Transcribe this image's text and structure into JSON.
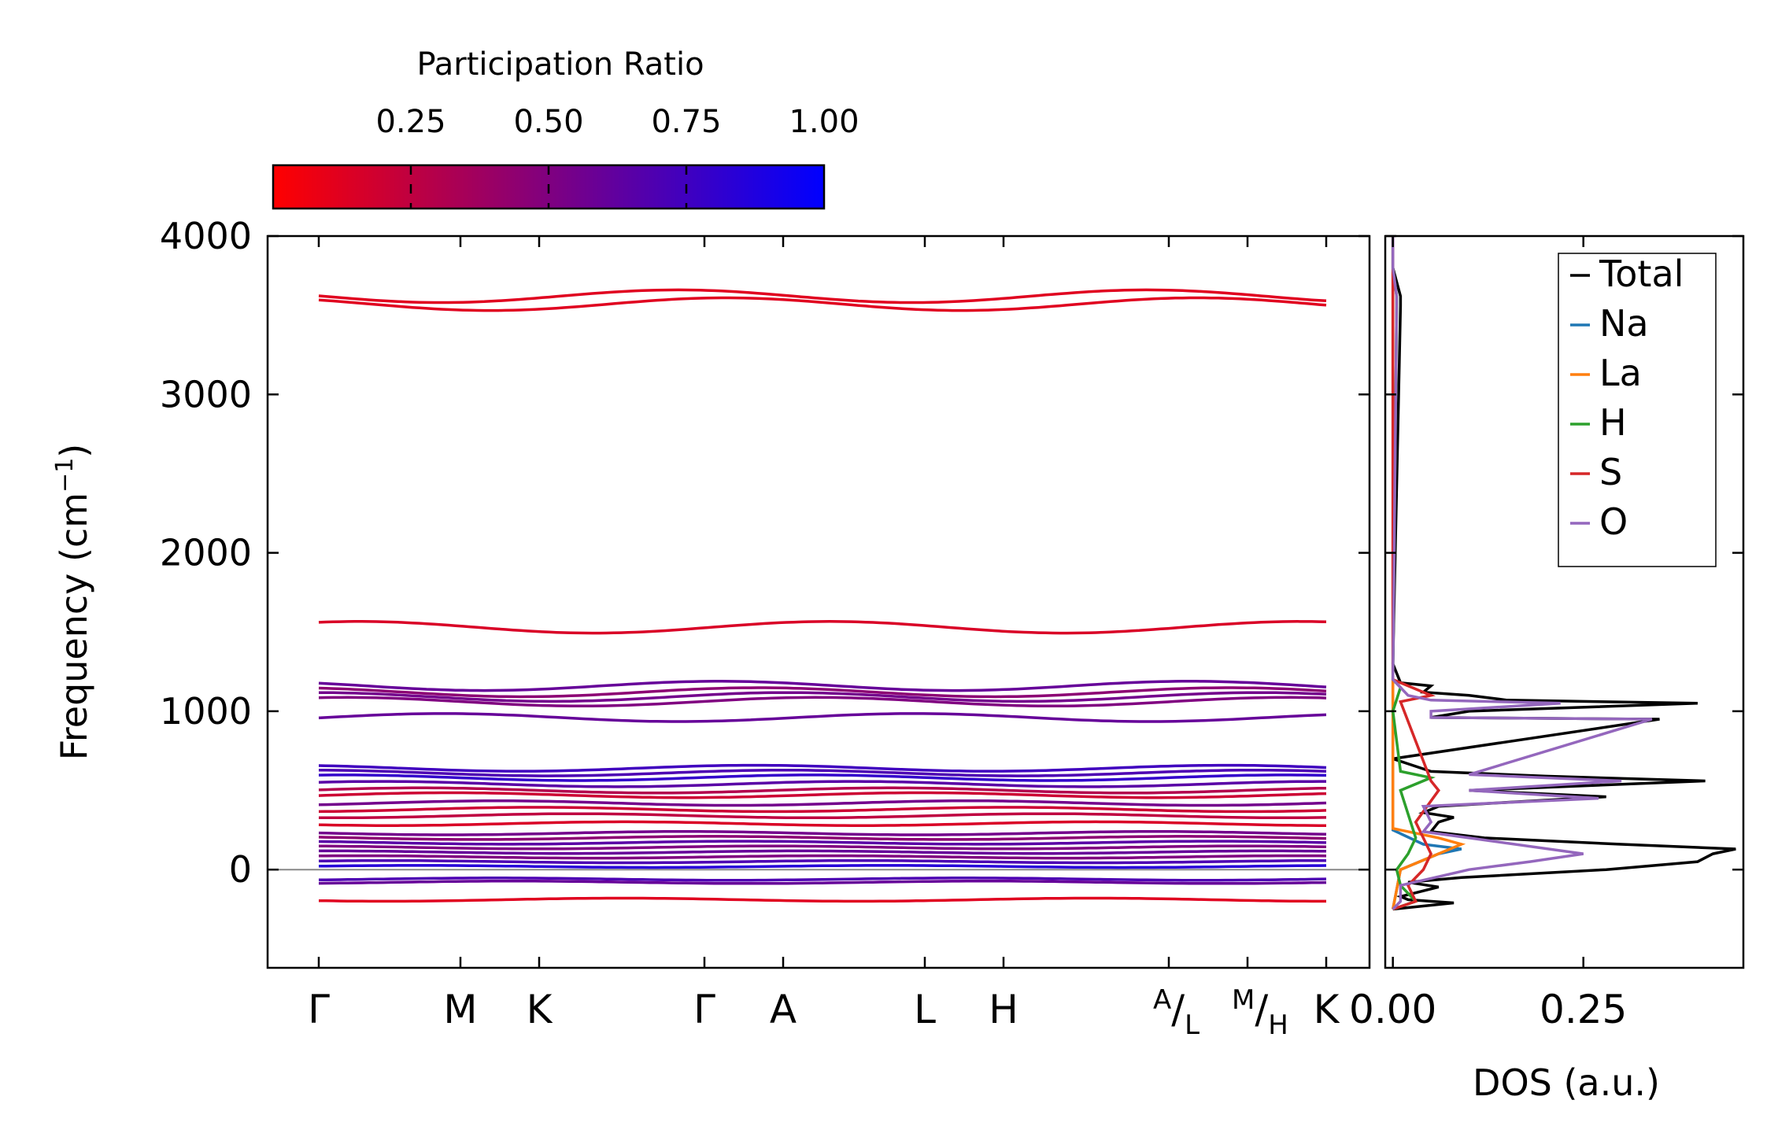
{
  "chart_data": [
    {
      "type": "line",
      "name": "phonon-band-structure",
      "ylabel": "Frequency (cm",
      "ylabel_sup": "−1",
      "ylabel_end": ")",
      "ylim": [
        -620,
        4000
      ],
      "yticks": [
        0,
        1000,
        2000,
        3000,
        4000
      ],
      "ytick_labels": [
        "0",
        "1000",
        "2000",
        "3000",
        "4000"
      ],
      "path_positions": [
        0,
        0.9,
        1.4,
        2.45,
        2.95,
        3.85,
        4.35,
        5.4,
        5.9,
        6.4
      ],
      "path_labels": [
        {
          "text": "Γ",
          "at": 0
        },
        {
          "text": "M",
          "at": 0.9
        },
        {
          "text": "K",
          "at": 1.4
        },
        {
          "text": "Γ",
          "at": 2.45
        },
        {
          "text": "A",
          "at": 2.95
        },
        {
          "text": "L",
          "at": 3.85
        },
        {
          "text": "H",
          "at": 4.35
        },
        {
          "text": "K",
          "at": 6.4
        }
      ],
      "split_labels": [
        {
          "top": "A",
          "bottom": "L",
          "at": 5.4
        },
        {
          "top": "M",
          "bottom": "H",
          "at": 5.9
        }
      ],
      "reference_line": 0,
      "bands": [
        {
          "freq": 3620,
          "pr": 0.12
        },
        {
          "freq": 3570,
          "pr": 0.12
        },
        {
          "freq": 1530,
          "pr": 0.15
        },
        {
          "freq": 1160,
          "pr": 0.6
        },
        {
          "freq": 1120,
          "pr": 0.45
        },
        {
          "freq": 1090,
          "pr": 0.55
        },
        {
          "freq": 1060,
          "pr": 0.5
        },
        {
          "freq": 960,
          "pr": 0.6
        },
        {
          "freq": 640,
          "pr": 0.75
        },
        {
          "freq": 610,
          "pr": 0.7
        },
        {
          "freq": 580,
          "pr": 0.8
        },
        {
          "freq": 540,
          "pr": 0.65
        },
        {
          "freq": 500,
          "pr": 0.3
        },
        {
          "freq": 470,
          "pr": 0.2
        },
        {
          "freq": 420,
          "pr": 0.55
        },
        {
          "freq": 380,
          "pr": 0.2
        },
        {
          "freq": 340,
          "pr": 0.25
        },
        {
          "freq": 290,
          "pr": 0.15
        },
        {
          "freq": 230,
          "pr": 0.55
        },
        {
          "freq": 200,
          "pr": 0.45
        },
        {
          "freq": 170,
          "pr": 0.65
        },
        {
          "freq": 140,
          "pr": 0.5
        },
        {
          "freq": 110,
          "pr": 0.6
        },
        {
          "freq": 80,
          "pr": 0.5
        },
        {
          "freq": 50,
          "pr": 0.7
        },
        {
          "freq": 20,
          "pr": 0.85
        },
        {
          "freq": -60,
          "pr": 0.7
        },
        {
          "freq": -80,
          "pr": 0.6
        },
        {
          "freq": -190,
          "pr": 0.12
        }
      ]
    },
    {
      "type": "line",
      "name": "density-of-states",
      "xlabel": "DOS (a.u.)",
      "xlim": [
        -0.01,
        0.46
      ],
      "xticks": [
        0.0,
        0.25
      ],
      "xtick_labels": [
        "0.00",
        "0.25"
      ],
      "ylim": [
        -620,
        4000
      ],
      "series": [
        {
          "name": "Total",
          "color": "#000000",
          "freq": [
            -250,
            -210,
            -190,
            -170,
            -110,
            -80,
            -50,
            0,
            50,
            100,
            130,
            160,
            200,
            240,
            300,
            330,
            360,
            400,
            460,
            500,
            560,
            590,
            620,
            700,
            950,
            960,
            1000,
            1050,
            1070,
            1100,
            1120,
            1160,
            1180,
            1300,
            3560,
            3620,
            3800
          ],
          "dos": [
            0,
            0.08,
            0.02,
            0.01,
            0.06,
            0.02,
            0.09,
            0.28,
            0.4,
            0.42,
            0.45,
            0.3,
            0.12,
            0.05,
            0.06,
            0.08,
            0.04,
            0.06,
            0.28,
            0.1,
            0.41,
            0.2,
            0.05,
            0,
            0.35,
            0.05,
            0.1,
            0.4,
            0.15,
            0.1,
            0.04,
            0.05,
            0.01,
            0,
            0.01,
            0.01,
            0
          ]
        },
        {
          "name": "Na",
          "color": "#1f77b4",
          "freq": [
            -250,
            0,
            100,
            130,
            160,
            250,
            4000
          ],
          "dos": [
            0,
            0.01,
            0.06,
            0.09,
            0.04,
            0,
            0
          ]
        },
        {
          "name": "La",
          "color": "#ff7f0e",
          "freq": [
            -250,
            0,
            80,
            120,
            160,
            200,
            260,
            4000
          ],
          "dos": [
            0,
            0.01,
            0.05,
            0.07,
            0.09,
            0.06,
            0,
            0
          ]
        },
        {
          "name": "H",
          "color": "#2ca02c",
          "freq": [
            -250,
            -200,
            -100,
            0,
            100,
            200,
            500,
            580,
            620,
            1000,
            1150,
            1200,
            3560,
            3620,
            3800,
            4000
          ],
          "dos": [
            0,
            0.03,
            0.01,
            0.005,
            0.02,
            0.03,
            0.01,
            0.05,
            0.01,
            0,
            0.01,
            0,
            0.005,
            0.005,
            0,
            0
          ]
        },
        {
          "name": "S",
          "color": "#d62728",
          "freq": [
            -250,
            -200,
            -100,
            0,
            100,
            300,
            500,
            560,
            1060,
            1100,
            1200,
            4000
          ],
          "dos": [
            0,
            0.03,
            0.02,
            0.04,
            0.05,
            0.03,
            0.06,
            0.05,
            0.01,
            0.05,
            0,
            0
          ]
        },
        {
          "name": "O",
          "color": "#9467bd",
          "freq": [
            -250,
            -200,
            -100,
            0,
            50,
            100,
            200,
            240,
            300,
            400,
            450,
            500,
            560,
            600,
            950,
            960,
            1000,
            1050,
            1070,
            1100,
            1200,
            3560,
            3620,
            3800,
            4000
          ],
          "dos": [
            0,
            0.01,
            0.01,
            0.1,
            0.18,
            0.25,
            0.1,
            0.04,
            0.05,
            0.04,
            0.27,
            0.1,
            0.3,
            0.1,
            0.34,
            0.05,
            0.05,
            0.22,
            0.05,
            0.02,
            0,
            0.005,
            0.005,
            0,
            0
          ]
        }
      ],
      "legend": {
        "placement": "top-right",
        "entries": [
          "Total",
          "Na",
          "La",
          "H",
          "S",
          "O"
        ]
      }
    },
    {
      "type": "colorbar",
      "name": "participation-ratio-colorbar",
      "title": "Participation Ratio",
      "range": [
        0.0,
        1.0
      ],
      "ticks": [
        0.25,
        0.5,
        0.75,
        1.0
      ],
      "tick_labels": [
        "0.25",
        "0.50",
        "0.75",
        "1.00"
      ],
      "color_low": "#ff0000",
      "color_high": "#0000ff"
    }
  ]
}
